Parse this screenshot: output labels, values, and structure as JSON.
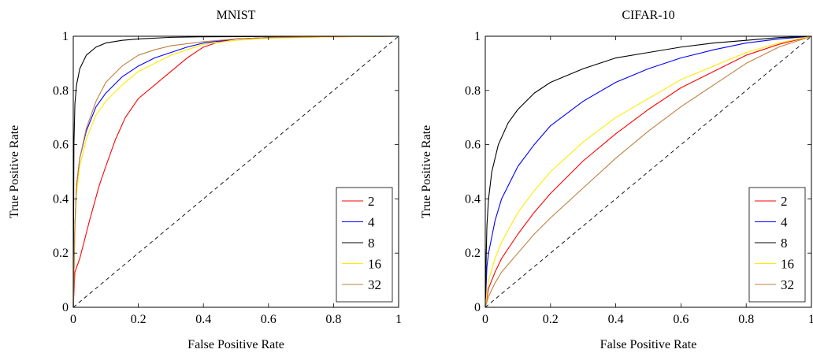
{
  "chart_data": [
    {
      "type": "line",
      "title": "MNIST",
      "xlabel": "False Positive Rate",
      "ylabel": "True Positive Rate",
      "xlim": [
        0,
        1
      ],
      "ylim": [
        0,
        1
      ],
      "xticks": [
        "0",
        "0.2",
        "0.4",
        "0.6",
        "0.8",
        "1"
      ],
      "yticks": [
        "0",
        "0.2",
        "0.4",
        "0.6",
        "0.8",
        "1"
      ],
      "grid": false,
      "legend_position": "bottom-right",
      "diagonal": "dashed",
      "series": [
        {
          "name": "2",
          "color": "#ff0000",
          "points": [
            [
              0,
              0
            ],
            [
              0.005,
              0.13
            ],
            [
              0.02,
              0.18
            ],
            [
              0.05,
              0.32
            ],
            [
              0.08,
              0.45
            ],
            [
              0.1,
              0.52
            ],
            [
              0.13,
              0.62
            ],
            [
              0.16,
              0.7
            ],
            [
              0.2,
              0.77
            ],
            [
              0.25,
              0.82
            ],
            [
              0.3,
              0.87
            ],
            [
              0.35,
              0.92
            ],
            [
              0.4,
              0.96
            ],
            [
              0.45,
              0.98
            ],
            [
              0.5,
              0.99
            ],
            [
              0.6,
              0.995
            ],
            [
              0.8,
              0.998
            ],
            [
              1,
              1
            ]
          ]
        },
        {
          "name": "4",
          "color": "#0000ff",
          "points": [
            [
              0,
              0
            ],
            [
              0.005,
              0.3
            ],
            [
              0.01,
              0.45
            ],
            [
              0.02,
              0.55
            ],
            [
              0.04,
              0.65
            ],
            [
              0.07,
              0.74
            ],
            [
              0.1,
              0.79
            ],
            [
              0.15,
              0.85
            ],
            [
              0.2,
              0.89
            ],
            [
              0.25,
              0.92
            ],
            [
              0.3,
              0.94
            ],
            [
              0.35,
              0.96
            ],
            [
              0.4,
              0.975
            ],
            [
              0.5,
              0.99
            ],
            [
              0.6,
              0.995
            ],
            [
              0.8,
              0.999
            ],
            [
              1,
              1
            ]
          ]
        },
        {
          "name": "8",
          "color": "#000000",
          "points": [
            [
              0,
              0
            ],
            [
              0.002,
              0.6
            ],
            [
              0.005,
              0.75
            ],
            [
              0.01,
              0.82
            ],
            [
              0.02,
              0.88
            ],
            [
              0.04,
              0.93
            ],
            [
              0.07,
              0.96
            ],
            [
              0.1,
              0.975
            ],
            [
              0.15,
              0.985
            ],
            [
              0.2,
              0.99
            ],
            [
              0.3,
              0.996
            ],
            [
              0.4,
              0.998
            ],
            [
              0.6,
              0.999
            ],
            [
              1,
              1
            ]
          ]
        },
        {
          "name": "16",
          "color": "#ffea00",
          "points": [
            [
              0,
              0
            ],
            [
              0.005,
              0.28
            ],
            [
              0.01,
              0.42
            ],
            [
              0.02,
              0.52
            ],
            [
              0.04,
              0.62
            ],
            [
              0.07,
              0.71
            ],
            [
              0.1,
              0.76
            ],
            [
              0.15,
              0.82
            ],
            [
              0.2,
              0.87
            ],
            [
              0.25,
              0.9
            ],
            [
              0.3,
              0.93
            ],
            [
              0.35,
              0.95
            ],
            [
              0.4,
              0.97
            ],
            [
              0.5,
              0.985
            ],
            [
              0.6,
              0.993
            ],
            [
              0.8,
              0.998
            ],
            [
              1,
              1
            ]
          ]
        },
        {
          "name": "32",
          "color": "#bf8040",
          "points": [
            [
              0,
              0
            ],
            [
              0.005,
              0.3
            ],
            [
              0.01,
              0.45
            ],
            [
              0.02,
              0.55
            ],
            [
              0.04,
              0.66
            ],
            [
              0.07,
              0.76
            ],
            [
              0.1,
              0.83
            ],
            [
              0.15,
              0.89
            ],
            [
              0.2,
              0.93
            ],
            [
              0.25,
              0.95
            ],
            [
              0.3,
              0.965
            ],
            [
              0.4,
              0.98
            ],
            [
              0.5,
              0.99
            ],
            [
              0.6,
              0.995
            ],
            [
              0.8,
              0.999
            ],
            [
              1,
              1
            ]
          ]
        }
      ]
    },
    {
      "type": "line",
      "title": "CIFAR-10",
      "xlabel": "False Positive Rate",
      "ylabel": "True Positive Rate",
      "xlim": [
        0,
        1
      ],
      "ylim": [
        0,
        1
      ],
      "xticks": [
        "0",
        "0.2",
        "0.4",
        "0.6",
        "0.8",
        "1"
      ],
      "yticks": [
        "0",
        "0.2",
        "0.4",
        "0.6",
        "0.8",
        "1"
      ],
      "grid": false,
      "legend_position": "bottom-right",
      "diagonal": "dashed",
      "series": [
        {
          "name": "2",
          "color": "#ff0000",
          "points": [
            [
              0,
              0
            ],
            [
              0.01,
              0.07
            ],
            [
              0.03,
              0.13
            ],
            [
              0.05,
              0.18
            ],
            [
              0.1,
              0.27
            ],
            [
              0.15,
              0.35
            ],
            [
              0.2,
              0.42
            ],
            [
              0.3,
              0.54
            ],
            [
              0.4,
              0.64
            ],
            [
              0.5,
              0.73
            ],
            [
              0.6,
              0.81
            ],
            [
              0.7,
              0.87
            ],
            [
              0.8,
              0.93
            ],
            [
              0.9,
              0.97
            ],
            [
              1,
              1
            ]
          ]
        },
        {
          "name": "4",
          "color": "#0000ff",
          "points": [
            [
              0,
              0
            ],
            [
              0.005,
              0.15
            ],
            [
              0.01,
              0.2
            ],
            [
              0.03,
              0.32
            ],
            [
              0.05,
              0.4
            ],
            [
              0.1,
              0.52
            ],
            [
              0.15,
              0.6
            ],
            [
              0.2,
              0.67
            ],
            [
              0.3,
              0.76
            ],
            [
              0.4,
              0.83
            ],
            [
              0.5,
              0.88
            ],
            [
              0.6,
              0.92
            ],
            [
              0.7,
              0.95
            ],
            [
              0.8,
              0.975
            ],
            [
              0.9,
              0.99
            ],
            [
              1,
              1
            ]
          ]
        },
        {
          "name": "8",
          "color": "#000000",
          "points": [
            [
              0,
              0
            ],
            [
              0.003,
              0.2
            ],
            [
              0.005,
              0.3
            ],
            [
              0.01,
              0.4
            ],
            [
              0.02,
              0.5
            ],
            [
              0.04,
              0.6
            ],
            [
              0.07,
              0.68
            ],
            [
              0.1,
              0.73
            ],
            [
              0.15,
              0.79
            ],
            [
              0.2,
              0.83
            ],
            [
              0.3,
              0.88
            ],
            [
              0.4,
              0.92
            ],
            [
              0.5,
              0.94
            ],
            [
              0.6,
              0.96
            ],
            [
              0.7,
              0.975
            ],
            [
              0.8,
              0.985
            ],
            [
              0.9,
              0.995
            ],
            [
              1,
              1
            ]
          ]
        },
        {
          "name": "16",
          "color": "#ffea00",
          "points": [
            [
              0,
              0
            ],
            [
              0.01,
              0.1
            ],
            [
              0.03,
              0.18
            ],
            [
              0.05,
              0.24
            ],
            [
              0.1,
              0.35
            ],
            [
              0.15,
              0.43
            ],
            [
              0.2,
              0.5
            ],
            [
              0.3,
              0.61
            ],
            [
              0.4,
              0.7
            ],
            [
              0.5,
              0.77
            ],
            [
              0.6,
              0.84
            ],
            [
              0.7,
              0.89
            ],
            [
              0.8,
              0.94
            ],
            [
              0.9,
              0.975
            ],
            [
              1,
              1
            ]
          ]
        },
        {
          "name": "32",
          "color": "#bf8040",
          "points": [
            [
              0,
              0
            ],
            [
              0.01,
              0.04
            ],
            [
              0.03,
              0.09
            ],
            [
              0.05,
              0.13
            ],
            [
              0.1,
              0.2
            ],
            [
              0.15,
              0.27
            ],
            [
              0.2,
              0.33
            ],
            [
              0.3,
              0.44
            ],
            [
              0.4,
              0.55
            ],
            [
              0.5,
              0.65
            ],
            [
              0.6,
              0.74
            ],
            [
              0.7,
              0.82
            ],
            [
              0.8,
              0.9
            ],
            [
              0.9,
              0.96
            ],
            [
              1,
              1
            ]
          ]
        }
      ]
    }
  ]
}
